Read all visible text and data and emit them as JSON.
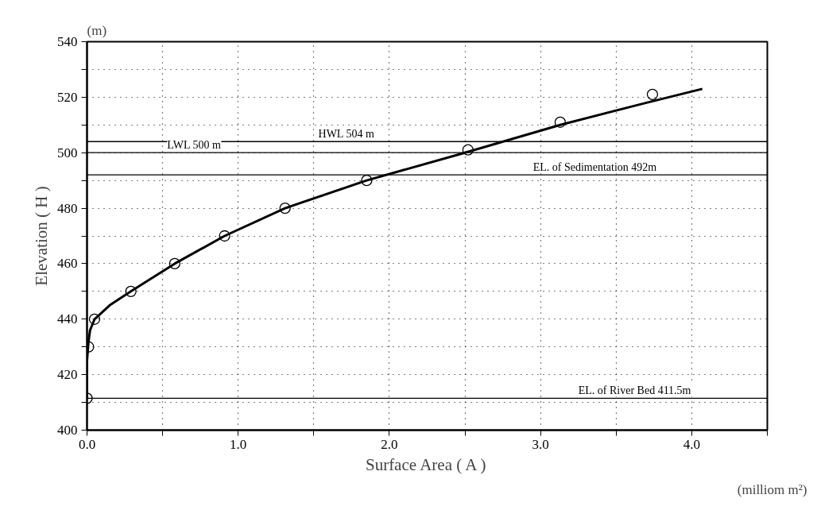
{
  "chart_data": {
    "type": "scatter",
    "xlabel": "Surface Area ( A )",
    "ylabel": "Elevation ( H )",
    "annotations": [
      "(m)",
      "(milliom m²)"
    ],
    "series": [
      {
        "color": "#000000",
        "marker": "circle",
        "x": [
          0.0,
          0.01,
          0.05,
          0.29,
          0.58,
          0.91,
          1.31,
          1.85,
          2.52,
          3.13,
          3.74
        ],
        "values": [
          411.5,
          430,
          440,
          450,
          460,
          470,
          480,
          490,
          501,
          511,
          521
        ]
      },
      {
        "type": "line",
        "color": "#000000",
        "line_style": "solid",
        "x": [
          0.0,
          0.0,
          0.01,
          0.02,
          0.05,
          0.15,
          0.29,
          0.58,
          0.91,
          1.31,
          1.85,
          2.5,
          3.13,
          3.7,
          4.07
        ],
        "values": [
          411.5,
          425,
          432,
          436,
          440,
          445,
          450,
          460,
          470,
          480,
          490,
          500,
          510,
          518,
          523
        ]
      }
    ],
    "ref_lines": [
      {
        "axis": "y",
        "value": 500,
        "label": "LWL 500 m",
        "color": "#000000"
      },
      {
        "axis": "y",
        "value": 504,
        "label": "HWL 504 m",
        "color": "#000000"
      },
      {
        "axis": "y",
        "value": 492,
        "label": "EL. of Sedimentation 492m",
        "color": "#000000"
      },
      {
        "axis": "y",
        "value": 411.5,
        "label": "EL. of River Bed  411.5m",
        "color": "#000000"
      }
    ],
    "xlim": [
      0,
      4.5
    ],
    "xticks": [
      {
        "value": 0,
        "label": "0.0"
      },
      {
        "value": 0.5,
        "label": null
      },
      {
        "value": 1,
        "label": "1.0"
      },
      {
        "value": 1.5,
        "label": null
      },
      {
        "value": 2,
        "label": "2.0"
      },
      {
        "value": 2.5,
        "label": null
      },
      {
        "value": 3,
        "label": "3.0"
      },
      {
        "value": 3.5,
        "label": null
      },
      {
        "value": 4,
        "label": "4.0"
      },
      {
        "value": 4.5,
        "label": null
      }
    ],
    "ylim": [
      400,
      540
    ],
    "yticks": [
      400,
      {
        "value": 410,
        "label": null
      },
      420,
      {
        "value": 430,
        "label": null
      },
      440,
      {
        "value": 450,
        "label": null
      },
      460,
      {
        "value": 470,
        "label": null
      },
      480,
      {
        "value": 490,
        "label": null
      },
      500,
      {
        "value": 510,
        "label": null
      },
      520,
      {
        "value": 530,
        "label": null
      },
      540
    ],
    "grid": true
  }
}
